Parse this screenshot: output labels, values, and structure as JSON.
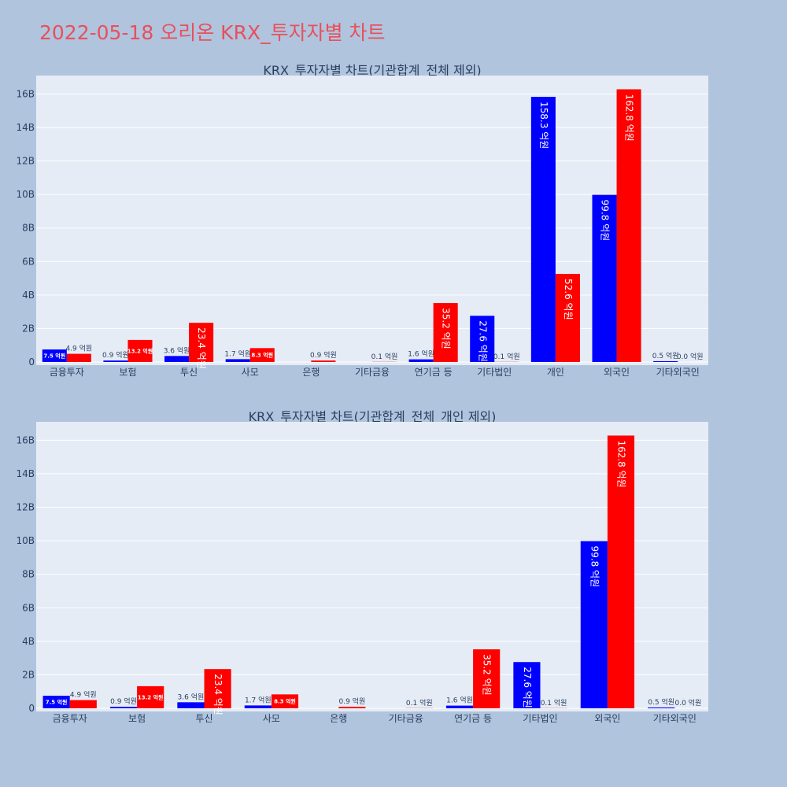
{
  "page": {
    "title": "2022-05-18 오리온 KRX_투자자별 차트"
  },
  "chart_data": [
    {
      "type": "bar",
      "title": "KRX_투자자별 차트(기관합계_전체 제외)",
      "categories": [
        "금융투자",
        "보험",
        "투신",
        "사모",
        "은행",
        "기타금융",
        "연기금 등",
        "기타법인",
        "개인",
        "외국인",
        "기타외국인"
      ],
      "series": [
        {
          "color": "#0000ff",
          "values": [
            0.75,
            0.09,
            0.36,
            0.17,
            0.0,
            0.0,
            0.16,
            2.76,
            15.83,
            9.98,
            0.05
          ],
          "labels": [
            "7.5 억원",
            "0.9 억원",
            "3.6 억원",
            "1.7 억원",
            "",
            "",
            "1.6 억원",
            "27.6 억원",
            "158.3 억원",
            "99.8 억원",
            "0.5 억원"
          ]
        },
        {
          "color": "#ff0000",
          "values": [
            0.49,
            1.32,
            2.34,
            0.83,
            0.09,
            0.01,
            3.52,
            0.01,
            5.26,
            16.28,
            0.0
          ],
          "labels": [
            "4.9 억원",
            "13.2 억원",
            "23.4 억원",
            "8.3 억원",
            "0.9 억원",
            "0.1 억원",
            "35.2 억원",
            "0.1 억원",
            "52.6 억원",
            "162.8 억원",
            "0.0 억원"
          ]
        }
      ],
      "yticks": [
        "0",
        "2B",
        "4B",
        "6B",
        "8B",
        "10B",
        "12B",
        "14B",
        "16B"
      ],
      "ylim": [
        0,
        17.1
      ],
      "grid": true
    },
    {
      "type": "bar",
      "title": "KRX_투자자별 차트(기관합계_전체_개인 제외)",
      "categories": [
        "금융투자",
        "보험",
        "투신",
        "사모",
        "은행",
        "기타금융",
        "연기금 등",
        "기타법인",
        "외국인",
        "기타외국인"
      ],
      "series": [
        {
          "color": "#0000ff",
          "values": [
            0.75,
            0.09,
            0.36,
            0.17,
            0.0,
            0.0,
            0.16,
            2.76,
            9.98,
            0.05
          ],
          "labels": [
            "7.5 억원",
            "0.9 억원",
            "3.6 억원",
            "1.7 억원",
            "",
            "",
            "1.6 억원",
            "27.6 억원",
            "99.8 억원",
            "0.5 억원"
          ]
        },
        {
          "color": "#ff0000",
          "values": [
            0.49,
            1.32,
            2.34,
            0.83,
            0.09,
            0.01,
            3.52,
            0.01,
            16.28,
            0.0
          ],
          "labels": [
            "4.9 억원",
            "13.2 억원",
            "23.4 억원",
            "8.3 억원",
            "0.9 억원",
            "0.1 억원",
            "35.2 억원",
            "0.1 억원",
            "162.8 억원",
            "0.0 억원"
          ]
        }
      ],
      "yticks": [
        "0",
        "2B",
        "4B",
        "6B",
        "8B",
        "10B",
        "12B",
        "14B",
        "16B"
      ],
      "ylim": [
        0,
        17.1
      ],
      "grid": true
    }
  ]
}
